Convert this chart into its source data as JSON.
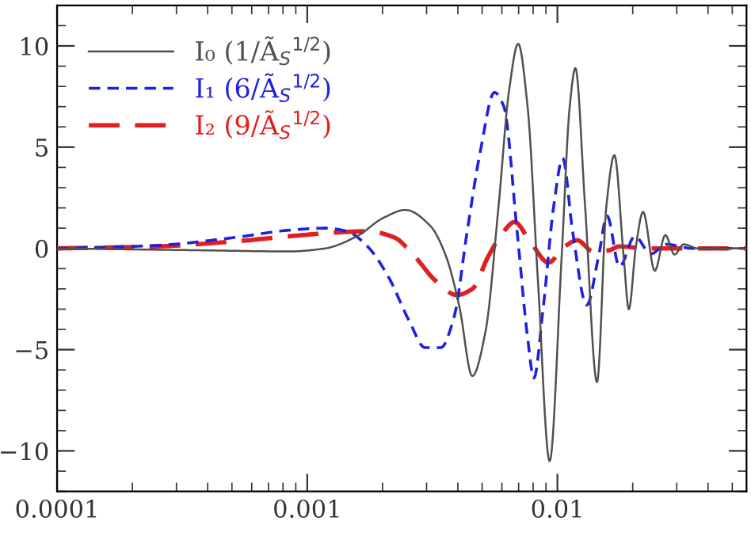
{
  "chart_data": {
    "type": "line",
    "log": "x",
    "grid": false,
    "legend": "top left",
    "marker": "none",
    "xlim": [
      0.0001,
      0.057
    ],
    "xticks": [
      0.0001,
      0.001,
      0.01
    ],
    "ylim": [
      -12,
      12
    ],
    "yticks": [
      -10,
      -5,
      0,
      5,
      10
    ],
    "series": [
      {
        "name": "I₀ (1/Ã$_{S}$$^{1/2}$)",
        "color": "#505050",
        "line_style": "solid",
        "x": [
          0.0001,
          0.000409,
          0.000845,
          0.00118,
          0.00158,
          0.00201,
          0.00247,
          0.00311,
          0.00359,
          0.00406,
          0.00457,
          0.00516,
          0.00582,
          0.00641,
          0.00697,
          0.0076,
          0.00836,
          0.00931,
          0.0104,
          0.0112,
          0.0118,
          0.0129,
          0.0144,
          0.0157,
          0.0169,
          0.0184,
          0.0193,
          0.0206,
          0.022,
          0.0245,
          0.027,
          0.0294,
          0.032,
          0.0365,
          0.057
        ],
        "values": [
          0,
          -0.1,
          -0.15,
          0,
          0.6,
          1.5,
          1.9,
          1.1,
          -0.4,
          -2.9,
          -6.3,
          -4.1,
          2.1,
          7.8,
          10.1,
          7.0,
          -1.6,
          -10.5,
          -0.4,
          7.0,
          8.9,
          2.1,
          -6.6,
          2.1,
          4.6,
          -0.4,
          -3.0,
          0.1,
          1.8,
          -1.1,
          0.65,
          -0.3,
          0.2,
          0,
          0
        ]
      },
      {
        "name": "I₁ (6/Ã$_{S}$$^{1/2}$)",
        "color": "#2020e0",
        "line_style": "dashed",
        "x": [
          0.0001,
          0.000253,
          0.000521,
          0.000845,
          0.00118,
          0.00144,
          0.00174,
          0.00211,
          0.00256,
          0.00296,
          0.00342,
          0.00386,
          0.00436,
          0.00492,
          0.0056,
          0.00611,
          0.0069,
          0.0076,
          0.00805,
          0.00878,
          0.00967,
          0.0105,
          0.0115,
          0.0131,
          0.0146,
          0.0158,
          0.0177,
          0.0204,
          0.0236,
          0.0273,
          0.0347,
          0.057
        ],
        "values": [
          0,
          0.15,
          0.55,
          0.9,
          1.0,
          0.85,
          0.1,
          -1.4,
          -3.6,
          -4.9,
          -4.9,
          -3.4,
          0.85,
          4.8,
          7.7,
          7.0,
          0.85,
          -4.4,
          -6.4,
          -2.9,
          2.1,
          4.45,
          0.85,
          -2.8,
          -0.4,
          1.6,
          -0.9,
          0.6,
          -0.27,
          0.2,
          0,
          0
        ]
      },
      {
        "name": "I₂ (9/Ã$_{S}$$^{1/2}$)",
        "color": "#e02020",
        "line_style": "long_dashed",
        "x": [
          0.0001,
          0.000253,
          0.000521,
          0.000845,
          0.00137,
          0.00174,
          0.00222,
          0.00269,
          0.00326,
          0.00396,
          0.00457,
          0.00529,
          0.00611,
          0.00673,
          0.00778,
          0.00921,
          0.0106,
          0.012,
          0.0139,
          0.016,
          0.0177,
          0.0225,
          0.057
        ],
        "values": [
          0,
          0.1,
          0.35,
          0.6,
          0.8,
          0.85,
          0.55,
          -0.4,
          -1.6,
          -2.3,
          -2.0,
          -0.4,
          0.85,
          1.3,
          0.35,
          -0.7,
          0.05,
          0.4,
          -0.15,
          -0.1,
          0.1,
          0,
          0
        ]
      }
    ]
  }
}
